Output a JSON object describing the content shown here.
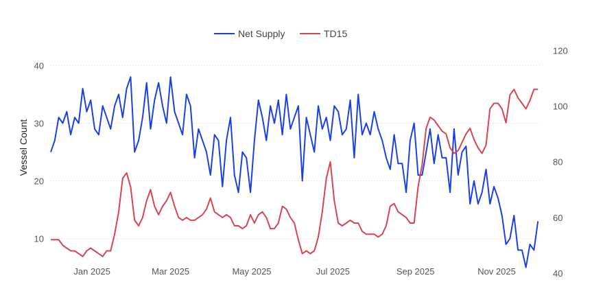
{
  "chart_data": {
    "type": "line",
    "title": "",
    "ylabel": "Vessel Count",
    "ylabel_right": "",
    "xlabel": "",
    "grid": true,
    "legend_position": "top-center",
    "ylim": [
      4,
      46
    ],
    "y2lim": [
      40,
      127
    ],
    "yticks": [
      10,
      20,
      30,
      40
    ],
    "y2ticks": [
      40,
      60,
      80,
      100,
      120
    ],
    "x_range": [
      "2024-12-01",
      "2025-12-05"
    ],
    "x_tick_labels": [
      {
        "date": "2025-01-01",
        "label": "Jan 2025"
      },
      {
        "date": "2025-03-01",
        "label": "Mar 2025"
      },
      {
        "date": "2025-05-01",
        "label": "May 2025"
      },
      {
        "date": "2025-07-01",
        "label": "Jul 2025"
      },
      {
        "date": "2025-09-01",
        "label": "Sep 2025"
      },
      {
        "date": "2025-11-01",
        "label": "Nov 2025"
      }
    ],
    "series": [
      {
        "name": "Net Supply",
        "axis": "left",
        "color": "#1a3fe6",
        "dates": [
          "2024-12-01",
          "2024-12-04",
          "2024-12-07",
          "2024-12-10",
          "2024-12-13",
          "2024-12-16",
          "2024-12-19",
          "2024-12-22",
          "2024-12-25",
          "2024-12-28",
          "2024-12-31",
          "2025-01-03",
          "2025-01-06",
          "2025-01-09",
          "2025-01-12",
          "2025-01-15",
          "2025-01-18",
          "2025-01-21",
          "2025-01-24",
          "2025-01-27",
          "2025-01-30",
          "2025-02-02",
          "2025-02-05",
          "2025-02-08",
          "2025-02-11",
          "2025-02-14",
          "2025-02-17",
          "2025-02-20",
          "2025-02-23",
          "2025-02-26",
          "2025-03-01",
          "2025-03-04",
          "2025-03-07",
          "2025-03-10",
          "2025-03-13",
          "2025-03-16",
          "2025-03-19",
          "2025-03-22",
          "2025-03-25",
          "2025-03-28",
          "2025-03-31",
          "2025-04-03",
          "2025-04-06",
          "2025-04-09",
          "2025-04-12",
          "2025-04-15",
          "2025-04-18",
          "2025-04-21",
          "2025-04-24",
          "2025-04-27",
          "2025-04-30",
          "2025-05-03",
          "2025-05-06",
          "2025-05-09",
          "2025-05-12",
          "2025-05-15",
          "2025-05-18",
          "2025-05-21",
          "2025-05-24",
          "2025-05-27",
          "2025-05-30",
          "2025-06-02",
          "2025-06-05",
          "2025-06-08",
          "2025-06-11",
          "2025-06-14",
          "2025-06-17",
          "2025-06-20",
          "2025-06-23",
          "2025-06-26",
          "2025-06-29",
          "2025-07-02",
          "2025-07-05",
          "2025-07-08",
          "2025-07-11",
          "2025-07-14",
          "2025-07-17",
          "2025-07-20",
          "2025-07-23",
          "2025-07-26",
          "2025-07-29",
          "2025-08-01",
          "2025-08-04",
          "2025-08-07",
          "2025-08-10",
          "2025-08-13",
          "2025-08-16",
          "2025-08-19",
          "2025-08-22",
          "2025-08-25",
          "2025-08-28",
          "2025-08-31",
          "2025-09-03",
          "2025-09-06",
          "2025-09-09",
          "2025-09-12",
          "2025-09-15",
          "2025-09-18",
          "2025-09-21",
          "2025-09-24",
          "2025-09-27",
          "2025-09-30",
          "2025-10-03",
          "2025-10-06",
          "2025-10-09",
          "2025-10-12",
          "2025-10-15",
          "2025-10-18",
          "2025-10-21",
          "2025-10-24",
          "2025-10-27",
          "2025-10-30",
          "2025-11-02",
          "2025-11-05",
          "2025-11-08",
          "2025-11-11",
          "2025-11-14",
          "2025-11-17",
          "2025-11-20",
          "2025-11-23",
          "2025-11-26",
          "2025-11-29",
          "2025-12-02"
        ],
        "values": [
          25,
          27,
          31,
          30,
          32,
          28,
          31,
          30,
          36,
          32,
          34,
          29,
          28,
          33,
          31,
          29,
          33,
          35,
          31,
          36,
          38,
          25,
          27,
          31,
          37,
          29,
          34,
          37,
          33,
          30,
          38,
          32,
          30,
          28,
          35,
          33,
          24,
          29,
          27,
          25,
          21,
          28,
          27,
          19,
          27,
          31,
          21,
          18,
          25,
          24,
          18,
          27,
          34,
          31,
          27,
          33,
          30,
          34,
          28,
          35,
          29,
          31,
          33,
          20,
          31,
          28,
          25,
          33,
          29,
          31,
          27,
          33,
          32,
          28,
          29,
          34,
          24,
          35,
          28,
          30,
          28,
          32,
          29,
          27,
          24,
          22,
          28,
          23,
          23,
          18,
          27,
          30,
          21,
          21,
          25,
          29,
          23,
          28,
          24,
          24,
          18,
          29,
          21,
          25,
          26,
          16,
          20,
          16,
          18,
          22,
          16,
          19,
          17,
          14,
          9,
          10,
          14,
          8,
          8,
          5,
          9,
          8,
          13
        ]
      },
      {
        "name": "TD15",
        "axis": "right",
        "color": "#d9434f",
        "dates": [
          "2024-12-01",
          "2024-12-04",
          "2024-12-07",
          "2024-12-10",
          "2024-12-13",
          "2024-12-16",
          "2024-12-19",
          "2024-12-22",
          "2024-12-25",
          "2024-12-28",
          "2024-12-31",
          "2025-01-03",
          "2025-01-06",
          "2025-01-09",
          "2025-01-12",
          "2025-01-15",
          "2025-01-18",
          "2025-01-21",
          "2025-01-24",
          "2025-01-27",
          "2025-01-30",
          "2025-02-02",
          "2025-02-05",
          "2025-02-08",
          "2025-02-11",
          "2025-02-14",
          "2025-02-17",
          "2025-02-20",
          "2025-02-23",
          "2025-02-26",
          "2025-03-01",
          "2025-03-04",
          "2025-03-07",
          "2025-03-10",
          "2025-03-13",
          "2025-03-16",
          "2025-03-19",
          "2025-03-22",
          "2025-03-25",
          "2025-03-28",
          "2025-03-31",
          "2025-04-03",
          "2025-04-06",
          "2025-04-09",
          "2025-04-12",
          "2025-04-15",
          "2025-04-18",
          "2025-04-21",
          "2025-04-24",
          "2025-04-27",
          "2025-04-30",
          "2025-05-03",
          "2025-05-06",
          "2025-05-09",
          "2025-05-12",
          "2025-05-15",
          "2025-05-18",
          "2025-05-21",
          "2025-05-24",
          "2025-05-27",
          "2025-05-30",
          "2025-06-02",
          "2025-06-05",
          "2025-06-08",
          "2025-06-11",
          "2025-06-14",
          "2025-06-17",
          "2025-06-20",
          "2025-06-23",
          "2025-06-26",
          "2025-06-29",
          "2025-07-02",
          "2025-07-05",
          "2025-07-08",
          "2025-07-11",
          "2025-07-14",
          "2025-07-17",
          "2025-07-20",
          "2025-07-23",
          "2025-07-26",
          "2025-07-29",
          "2025-08-01",
          "2025-08-04",
          "2025-08-07",
          "2025-08-10",
          "2025-08-13",
          "2025-08-16",
          "2025-08-19",
          "2025-08-22",
          "2025-08-25",
          "2025-08-28",
          "2025-08-31",
          "2025-09-03",
          "2025-09-06",
          "2025-09-09",
          "2025-09-12",
          "2025-09-15",
          "2025-09-18",
          "2025-09-21",
          "2025-09-24",
          "2025-09-27",
          "2025-09-30",
          "2025-10-03",
          "2025-10-06",
          "2025-10-09",
          "2025-10-12",
          "2025-10-15",
          "2025-10-18",
          "2025-10-21",
          "2025-10-24",
          "2025-10-27",
          "2025-10-30",
          "2025-11-02",
          "2025-11-05",
          "2025-11-08",
          "2025-11-11",
          "2025-11-14",
          "2025-11-17",
          "2025-11-20",
          "2025-11-23",
          "2025-11-26",
          "2025-11-29",
          "2025-12-02"
        ],
        "values": [
          52,
          52,
          52,
          50,
          49,
          48,
          48,
          47,
          46,
          48,
          49,
          48,
          47,
          46,
          48,
          48,
          54,
          62,
          74,
          76,
          71,
          59,
          57,
          60,
          66,
          70,
          64,
          61,
          64,
          66,
          69,
          64,
          60,
          59,
          60,
          59,
          59,
          60,
          61,
          63,
          67,
          62,
          61,
          60,
          61,
          60,
          57,
          57,
          56,
          57,
          61,
          58,
          61,
          62,
          60,
          56,
          56,
          58,
          64,
          63,
          60,
          58,
          52,
          47,
          48,
          47,
          48,
          53,
          62,
          74,
          80,
          66,
          58,
          57,
          58,
          59,
          58,
          58,
          55,
          54,
          54,
          54,
          53,
          54,
          57,
          64,
          65,
          62,
          61,
          60,
          58,
          58,
          71,
          79,
          92,
          96,
          95,
          93,
          91,
          90,
          85,
          83,
          84,
          87,
          90,
          92,
          88,
          85,
          83,
          86,
          99,
          101,
          101,
          99,
          94,
          104,
          106,
          103,
          101,
          99,
          102,
          106,
          106
        ]
      }
    ]
  }
}
